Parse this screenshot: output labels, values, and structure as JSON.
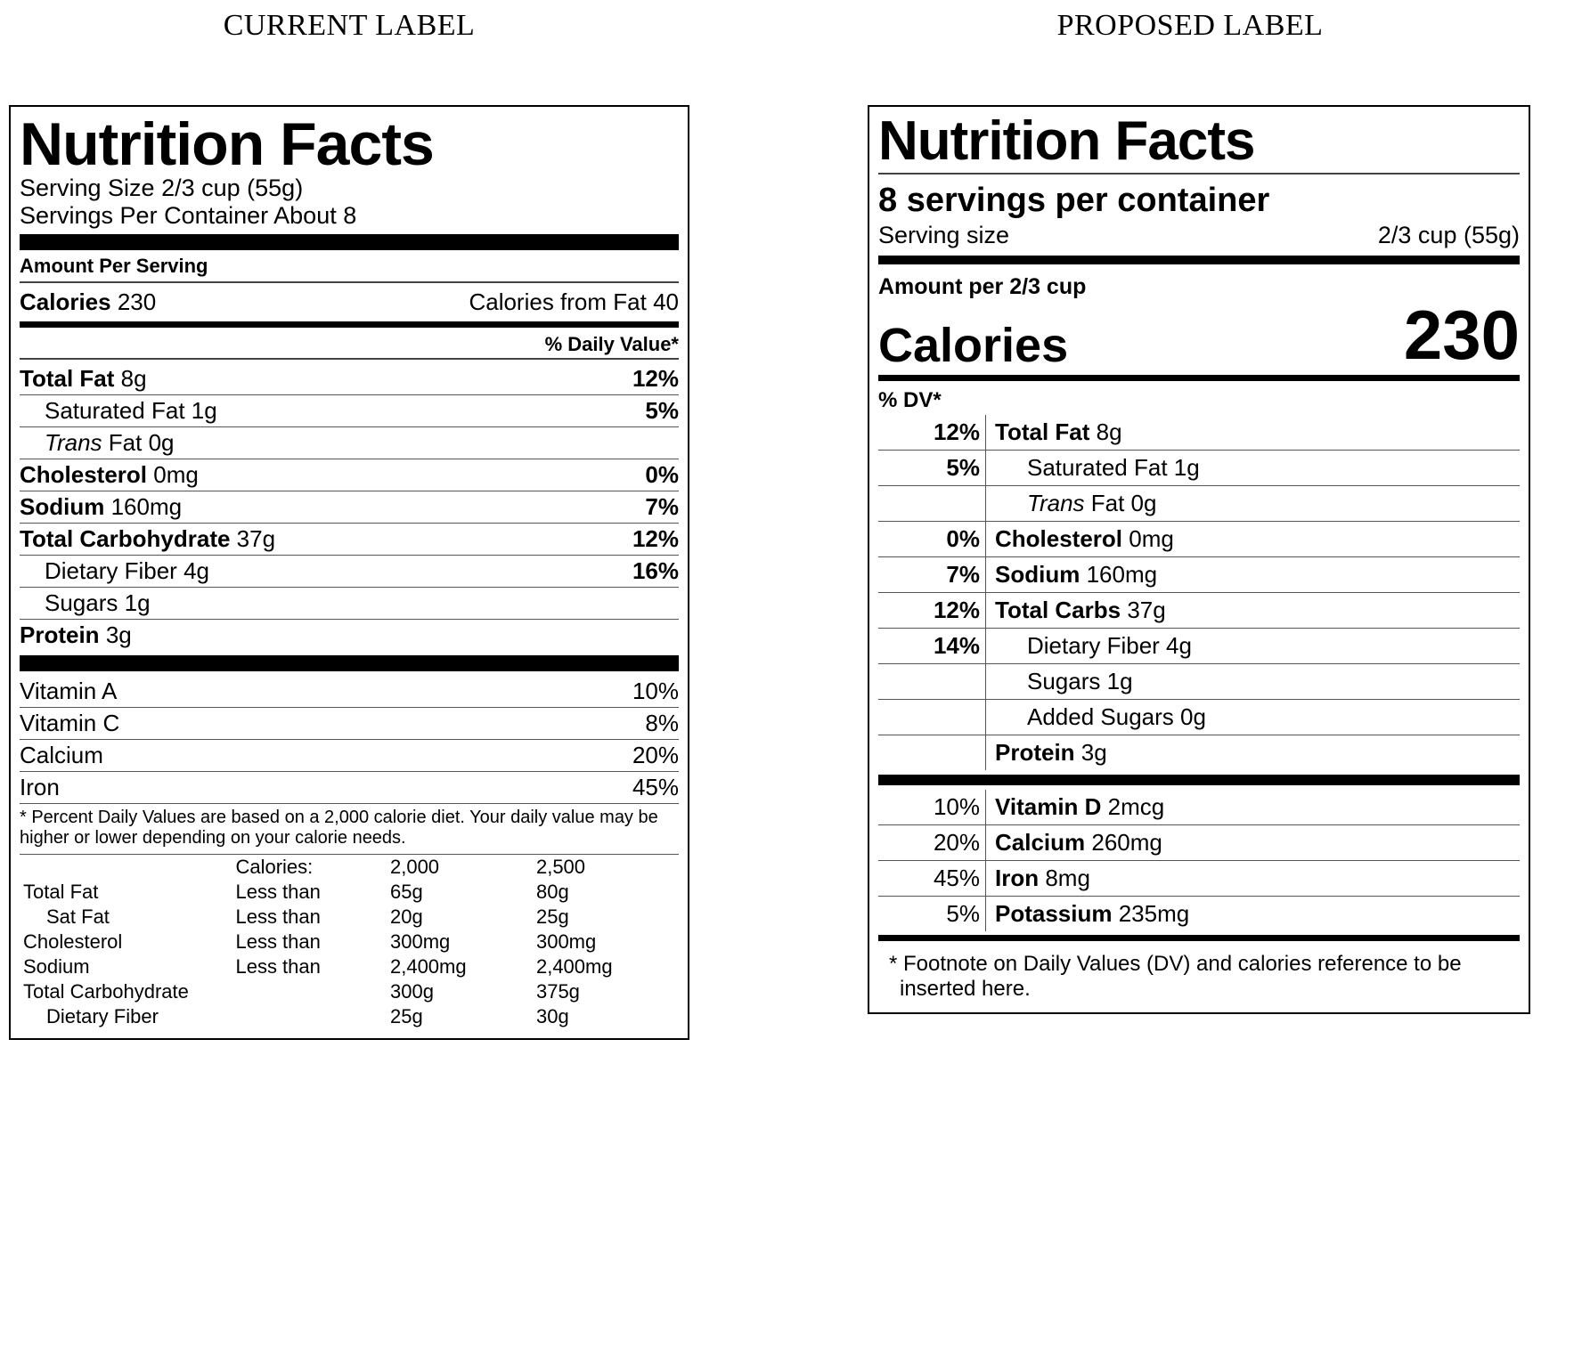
{
  "current": {
    "col_title": "CURRENT LABEL",
    "title": "Nutrition Facts",
    "serving_size_label": "Serving Size",
    "serving_size_val": "2/3 cup (55g)",
    "servings_per_label": "Servings Per Container",
    "servings_per_val": "About 8",
    "amount_per_serving": "Amount Per Serving",
    "calories_label": "Calories",
    "calories_val": "230",
    "calories_from_fat_label": "Calories from Fat",
    "calories_from_fat_val": "40",
    "dv_header": "% Daily Value*",
    "nutrients": {
      "total_fat": {
        "label": "Total Fat",
        "amt": "8g",
        "pct": "12%"
      },
      "sat_fat": {
        "label": "Saturated Fat",
        "amt": "1g",
        "pct": "5%"
      },
      "trans_fat": {
        "prefix": "Trans",
        "suffix": "Fat",
        "amt": "0g"
      },
      "cholesterol": {
        "label": "Cholesterol",
        "amt": "0mg",
        "pct": "0%"
      },
      "sodium": {
        "label": "Sodium",
        "amt": "160mg",
        "pct": "7%"
      },
      "total_carb": {
        "label": "Total Carbohydrate",
        "amt": "37g",
        "pct": "12%"
      },
      "fiber": {
        "label": "Dietary Fiber",
        "amt": "4g",
        "pct": "16%"
      },
      "sugars": {
        "label": "Sugars",
        "amt": "1g"
      },
      "protein": {
        "label": "Protein",
        "amt": "3g"
      }
    },
    "vitamins": {
      "a": {
        "label": "Vitamin A",
        "pct": "10%"
      },
      "c": {
        "label": "Vitamin C",
        "pct": "8%"
      },
      "calcium": {
        "label": "Calcium",
        "pct": "20%"
      },
      "iron": {
        "label": "Iron",
        "pct": "45%"
      }
    },
    "footnote": "* Percent Daily Values are based on a 2,000 calorie diet. Your daily value may be higher or lower depending on your calorie needs.",
    "foot_table": {
      "hdr": {
        "c2": "Calories:",
        "c3": "2,000",
        "c4": "2,500"
      },
      "rows": [
        {
          "name": "Total Fat",
          "op": "Less than",
          "v1": "65g",
          "v2": "80g"
        },
        {
          "name": "Sat Fat",
          "op": "Less than",
          "v1": "20g",
          "v2": "25g",
          "indent": true
        },
        {
          "name": "Cholesterol",
          "op": "Less than",
          "v1": "300mg",
          "v2": "300mg"
        },
        {
          "name": "Sodium",
          "op": "Less than",
          "v1": "2,400mg",
          "v2": "2,400mg"
        },
        {
          "name": "Total Carbohydrate",
          "op": "",
          "v1": "300g",
          "v2": "375g"
        },
        {
          "name": "Dietary Fiber",
          "op": "",
          "v1": "25g",
          "v2": "30g",
          "indent": true
        }
      ]
    }
  },
  "proposed": {
    "col_title": "PROPOSED LABEL",
    "title": "Nutrition Facts",
    "servings_per": "8 servings per container",
    "serving_size_label": "Serving size",
    "serving_size_val": "2/3 cup (55g)",
    "amount_per": "Amount per 2/3 cup",
    "calories_label": "Calories",
    "calories_val": "230",
    "dv_header": "% DV*",
    "nutrients": [
      {
        "pct": "12%",
        "bold": "Total Fat",
        "amt": "8g"
      },
      {
        "pct": "5%",
        "plain": "Saturated Fat",
        "amt": "1g",
        "sub": true
      },
      {
        "pct": "",
        "italic": "Trans",
        "plain": "Fat",
        "amt": "0g",
        "sub": true
      },
      {
        "pct": "0%",
        "bold": "Cholesterol",
        "amt": "0mg"
      },
      {
        "pct": "7%",
        "bold": "Sodium",
        "amt": "160mg"
      },
      {
        "pct": "12%",
        "bold": "Total Carbs",
        "amt": "37g"
      },
      {
        "pct": "14%",
        "plain": "Dietary Fiber",
        "amt": "4g",
        "sub": true
      },
      {
        "pct": "",
        "plain": "Sugars",
        "amt": "1g",
        "sub": true
      },
      {
        "pct": "",
        "plain": "Added Sugars",
        "amt": "0g",
        "sub": true
      },
      {
        "pct": "",
        "bold": "Protein",
        "amt": "3g"
      }
    ],
    "vitamins": [
      {
        "pct": "10%",
        "bold": "Vitamin D",
        "amt": "2mcg"
      },
      {
        "pct": "20%",
        "bold": "Calcium",
        "amt": "260mg"
      },
      {
        "pct": "45%",
        "bold": "Iron",
        "amt": "8mg"
      },
      {
        "pct": "5%",
        "bold": "Potassium",
        "amt": "235mg"
      }
    ],
    "footnote": "* Footnote on Daily Values (DV) and calories reference to be inserted here."
  }
}
